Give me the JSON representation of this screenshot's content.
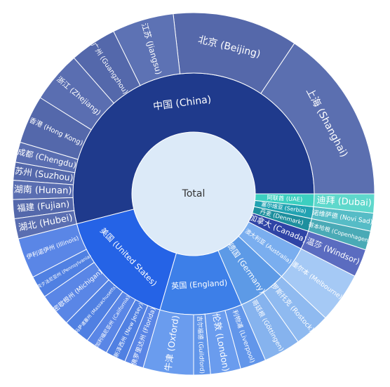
{
  "chart_data": {
    "type": "sunburst",
    "root": {
      "label": "Total",
      "color": "#dceaf8"
    },
    "children": [
      {
        "name": "中国 (China)",
        "value": 54,
        "color": "#1f3a8c",
        "children": [
          {
            "name": "上海 (Shanghai)",
            "value": 15.6,
            "color": "#5b6fb0"
          },
          {
            "name": "北京 (Beijing)",
            "value": 11.2,
            "color": "#5568aa"
          },
          {
            "name": "江苏 (Jiangsu)",
            "value": 5.5,
            "color": "#5d72b4"
          },
          {
            "name": "广州 (Guangzhou)",
            "value": 4.2,
            "color": "#5468ab"
          },
          {
            "name": "浙江 (Zhejiang)",
            "value": 4.6,
            "color": "#5a6eb1"
          },
          {
            "name": "香港 (Hong Kong)",
            "value": 4.3,
            "color": "#5468ab"
          },
          {
            "name": "成都 (Chengdu)",
            "value": 1.8,
            "color": "#5a6eb1"
          },
          {
            "name": "苏州 (Suzhou)",
            "value": 1.6,
            "color": "#5468ab"
          },
          {
            "name": "湖南 (Hunan)",
            "value": 1.7,
            "color": "#5a6eb1"
          },
          {
            "name": "福建 (Fujian)",
            "value": 1.7,
            "color": "#5468ab"
          },
          {
            "name": "湖北 (Hubei)",
            "value": 1.8,
            "color": "#5a6eb1"
          }
        ]
      },
      {
        "name": "美国 (United States)",
        "value": 16.5,
        "color": "#2563e6",
        "children": [
          {
            "name": "伊利诺伊州 (Illinois)",
            "value": 3.6,
            "color": "#5a86e6"
          },
          {
            "name": "宾夕法尼亚州 (Pennsylvania)",
            "value": 2.0,
            "color": "#5080e2"
          },
          {
            "name": "密歇根州 (Michigan)",
            "value": 3.0,
            "color": "#5a86e6"
          },
          {
            "name": "马萨诸塞州 (Massachusetts)",
            "value": 2.4,
            "color": "#5080e2"
          },
          {
            "name": "加利福尼亚州 (California)",
            "value": 2.0,
            "color": "#5a86e6"
          },
          {
            "name": "新泽西州 (New Jersey)",
            "value": 1.8,
            "color": "#5080e2"
          },
          {
            "name": "佛罗里达州 (Florida)",
            "value": 1.7,
            "color": "#5a86e6"
          }
        ]
      },
      {
        "name": "英国 (England)",
        "value": 11,
        "color": "#3d7fe8",
        "children": [
          {
            "name": "牛津 (Oxford)",
            "value": 4.5,
            "color": "#6a9cee"
          },
          {
            "name": "吉尔福德 (Guildford)",
            "value": 1.5,
            "color": "#6296ea"
          },
          {
            "name": "伦敦 (London)",
            "value": 2.7,
            "color": "#6a9cee"
          },
          {
            "name": "利物浦 (Liverpool)",
            "value": 2.3,
            "color": "#6296ea"
          }
        ]
      },
      {
        "name": "德国 (Germany)",
        "value": 6.5,
        "color": "#5d9ae6",
        "children": [
          {
            "name": "哥廷根 (Göttingen)",
            "value": 3.3,
            "color": "#86b3ee"
          },
          {
            "name": "罗斯托克 (Rostock)",
            "value": 3.2,
            "color": "#8fbaf0"
          }
        ]
      },
      {
        "name": "澳大利亚 (Australia)",
        "value": 4.5,
        "color": "#7aaeef",
        "children": [
          {
            "name": "墨尔本 (Melbourne)",
            "value": 4.5,
            "color": "#a5c9f5"
          }
        ]
      },
      {
        "name": "加拿大 (Canada)",
        "value": 2.5,
        "color": "#2f44a6",
        "children": [
          {
            "name": "温莎 (Windsor)",
            "value": 2.5,
            "color": "#5b6cc0"
          }
        ]
      },
      {
        "name": "丹麦 (Denmark)",
        "value": 1.7,
        "color": "#1e8f9e",
        "children": [
          {
            "name": "哥本哈根 (Copenhagen)",
            "value": 1.7,
            "color": "#4aaab6"
          }
        ]
      },
      {
        "name": "塞尔维亚 (Serbia)",
        "value": 1.6,
        "color": "#22a3b2",
        "children": [
          {
            "name": "诺维萨德 (Novi Sad)",
            "value": 1.6,
            "color": "#56bcc6"
          }
        ]
      },
      {
        "name": "阿联酋 (UAE)",
        "value": 1.7,
        "color": "#3ccfc0",
        "children": [
          {
            "name": "迪拜 (Dubai)",
            "value": 1.7,
            "color": "#5fd8cc"
          }
        ]
      }
    ]
  }
}
